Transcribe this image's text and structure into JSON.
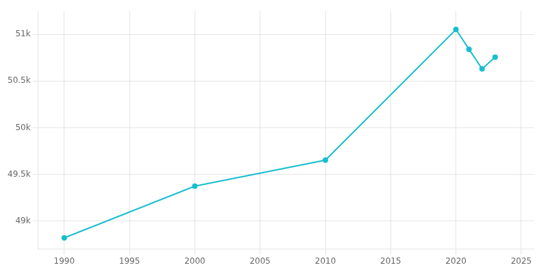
{
  "chart_data": {
    "type": "line",
    "x": [
      1990,
      2000,
      2010,
      2020,
      2021,
      2022,
      2023
    ],
    "values": [
      48820,
      49374,
      49652,
      51052,
      50840,
      50630,
      50754
    ],
    "color": "#17becf",
    "marker": "circle",
    "xlim": [
      1988,
      2026
    ],
    "xticks": [
      1990,
      1995,
      2000,
      2005,
      2010,
      2015,
      2020,
      2025
    ],
    "ylim": [
      48700,
      51250
    ],
    "yticks": [
      {
        "value": 49000,
        "label": "49k"
      },
      {
        "value": 49500,
        "label": "49.5k"
      },
      {
        "value": 50000,
        "label": "50k"
      },
      {
        "value": 50500,
        "label": "50.5k"
      },
      {
        "value": 51000,
        "label": "51k"
      }
    ],
    "grid": true
  }
}
